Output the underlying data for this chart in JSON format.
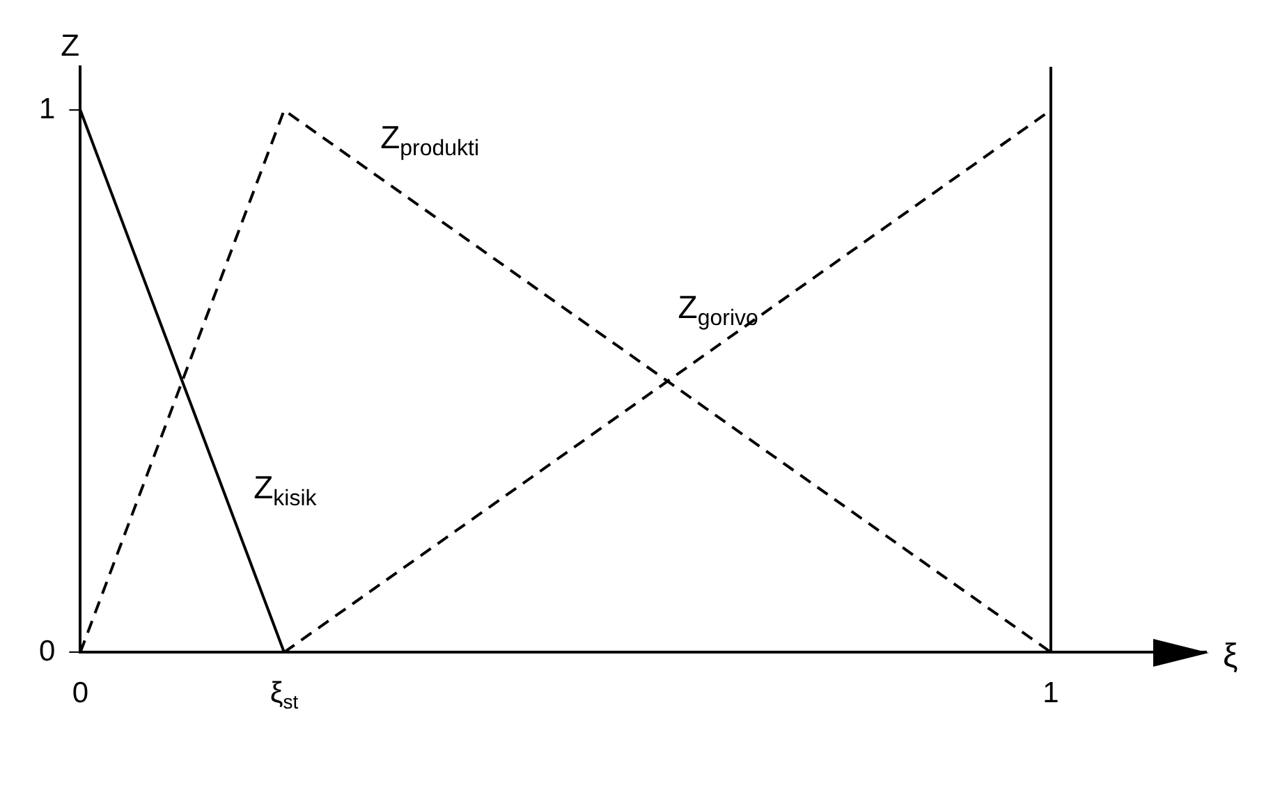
{
  "chart_data": {
    "type": "line",
    "xlabel": "ξ",
    "ylabel": "Z",
    "xlim": [
      0,
      1.16
    ],
    "ylim": [
      0,
      1.08
    ],
    "ref_lines": [
      {
        "axis": "x",
        "value": 1,
        "color": "#000000",
        "line_style": "solid"
      }
    ],
    "xticks": [
      0,
      {
        "value": 0.21,
        "label": "ξ$_{st}$"
      },
      1
    ],
    "yticks": [
      0,
      1
    ],
    "grid": false,
    "legend": false,
    "marker": "none",
    "series": [
      {
        "name": "Z$_{kisik}$",
        "color": "#000000",
        "line_style": "solid",
        "x": [
          0,
          0.21
        ],
        "values": [
          1,
          0
        ]
      },
      {
        "name": "Z$_{produkti}$",
        "color": "#000000",
        "line_style": "dashed",
        "x": [
          0,
          0.21,
          1
        ],
        "values": [
          0,
          1,
          0
        ]
      },
      {
        "name": "Z$_{gorivo}$",
        "color": "#000000",
        "line_style": "dashed",
        "x": [
          0.21,
          1
        ],
        "values": [
          0,
          1
        ]
      }
    ]
  }
}
